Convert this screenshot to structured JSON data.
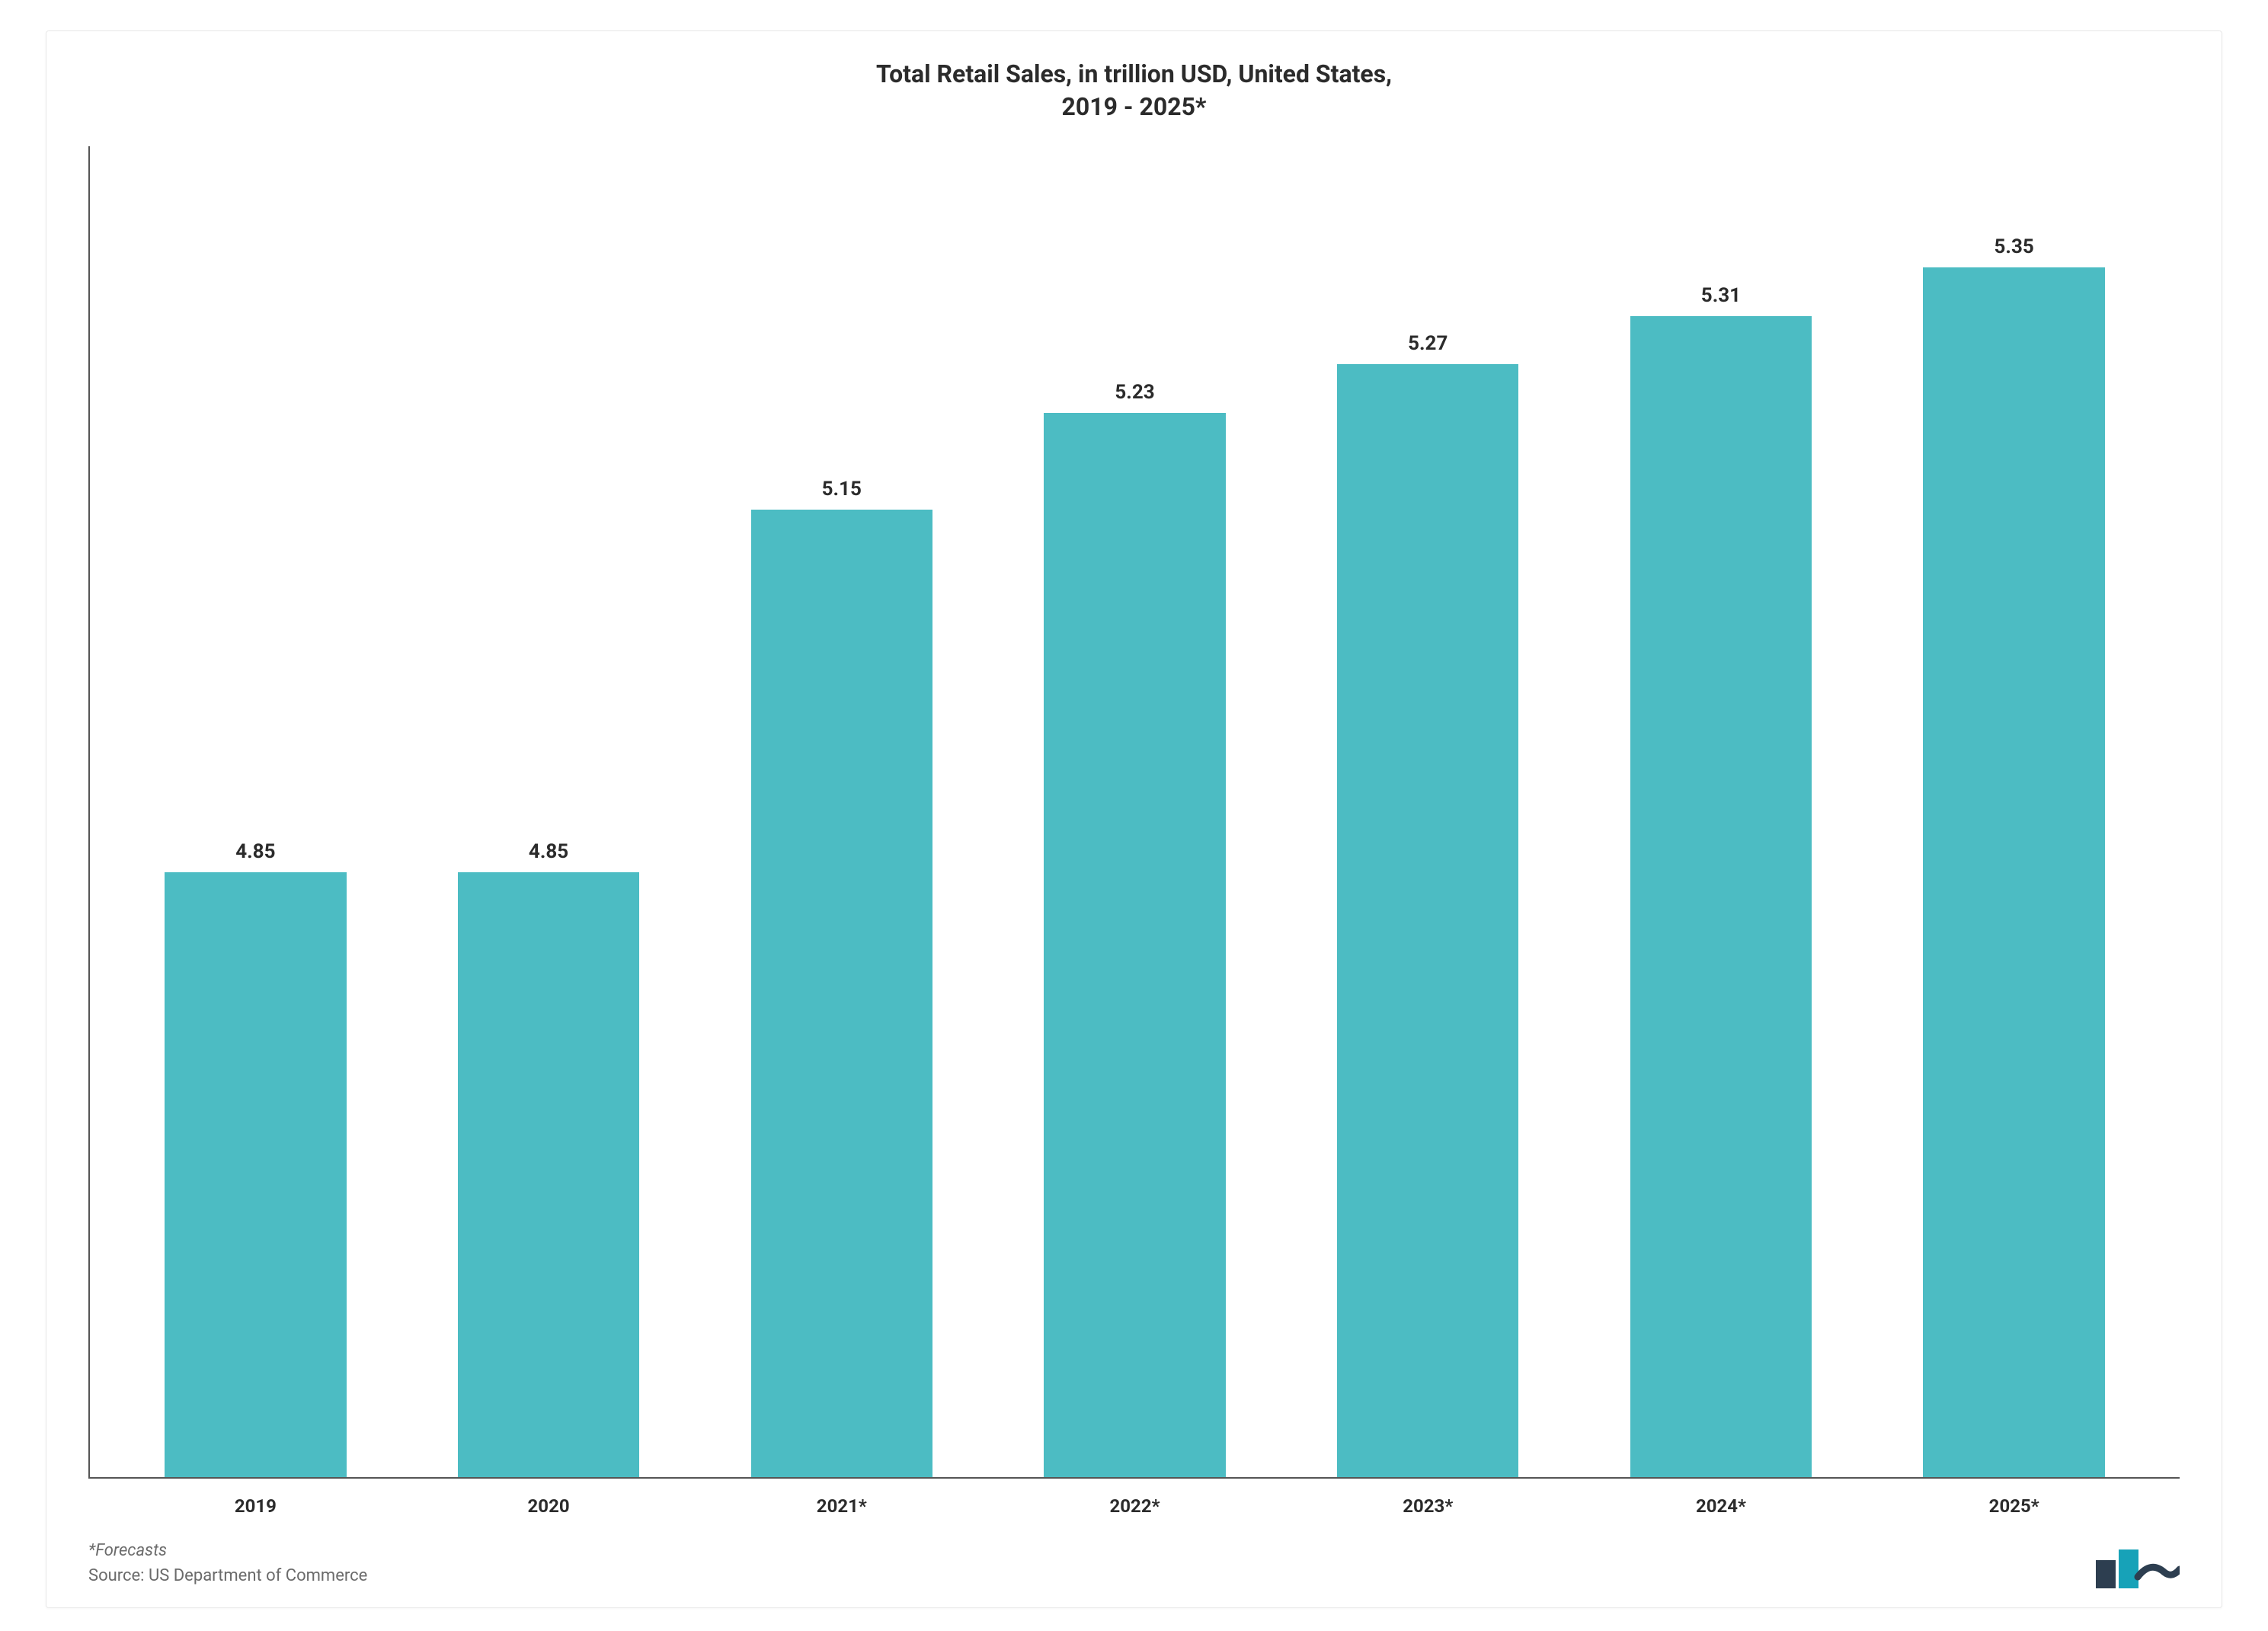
{
  "chart": {
    "type": "bar",
    "title_line1": "Total Retail Sales, in trillion USD, United States,",
    "title_line2": "2019 - 2025*",
    "title_fontsize": 32,
    "title_color": "#2b2b2b",
    "categories": [
      "2019",
      "2020",
      "2021*",
      "2022*",
      "2023*",
      "2024*",
      "2025*"
    ],
    "values": [
      4.85,
      4.85,
      5.15,
      5.23,
      5.27,
      5.31,
      5.35
    ],
    "value_labels": [
      "4.85",
      "4.85",
      "5.15",
      "5.23",
      "5.27",
      "5.31",
      "5.35"
    ],
    "bar_color": "#4cbcc3",
    "axis_color": "#555555",
    "value_label_fontsize": 26,
    "value_label_color": "#2b2b2b",
    "category_label_fontsize": 24,
    "category_label_color": "#2b2b2b",
    "ylim": [
      4.35,
      5.45
    ],
    "bar_width_pct": 62,
    "background_color": "#ffffff"
  },
  "footnote": {
    "forecast_note": "*Forecasts",
    "source_note": "Source: US Department of Commerce",
    "fontsize": 22,
    "color": "#6b6b6b"
  },
  "logo": {
    "bar1_color": "#2d3e50",
    "bar2_color": "#17a2b8",
    "wave_color": "#2d3e50"
  }
}
